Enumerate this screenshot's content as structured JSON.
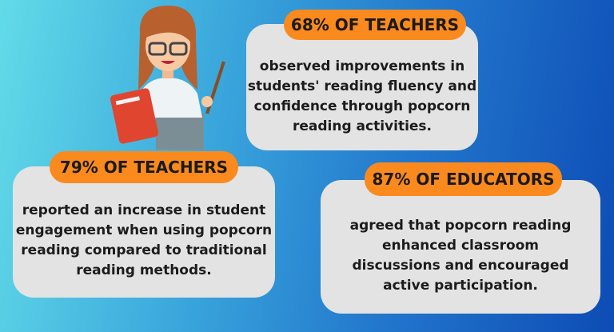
{
  "colors": {
    "pill": "#fb8a1e",
    "card": "#e3e3e3",
    "bg_left": "#62dbe8",
    "bg_right": "#0d4cb5"
  },
  "illustration": "teacher-holding-book-and-pointer",
  "stats": [
    {
      "heading": "68% OF TEACHERS",
      "text": "observed improvements in students' reading fluency and confidence through popcorn reading activities."
    },
    {
      "heading": "79% OF TEACHERS",
      "text": "reported an increase in student engagement when using popcorn reading compared to traditional reading methods."
    },
    {
      "heading": "87% OF EDUCATORS",
      "text": "agreed that popcorn reading enhanced classroom discussions and encouraged active participation."
    }
  ]
}
